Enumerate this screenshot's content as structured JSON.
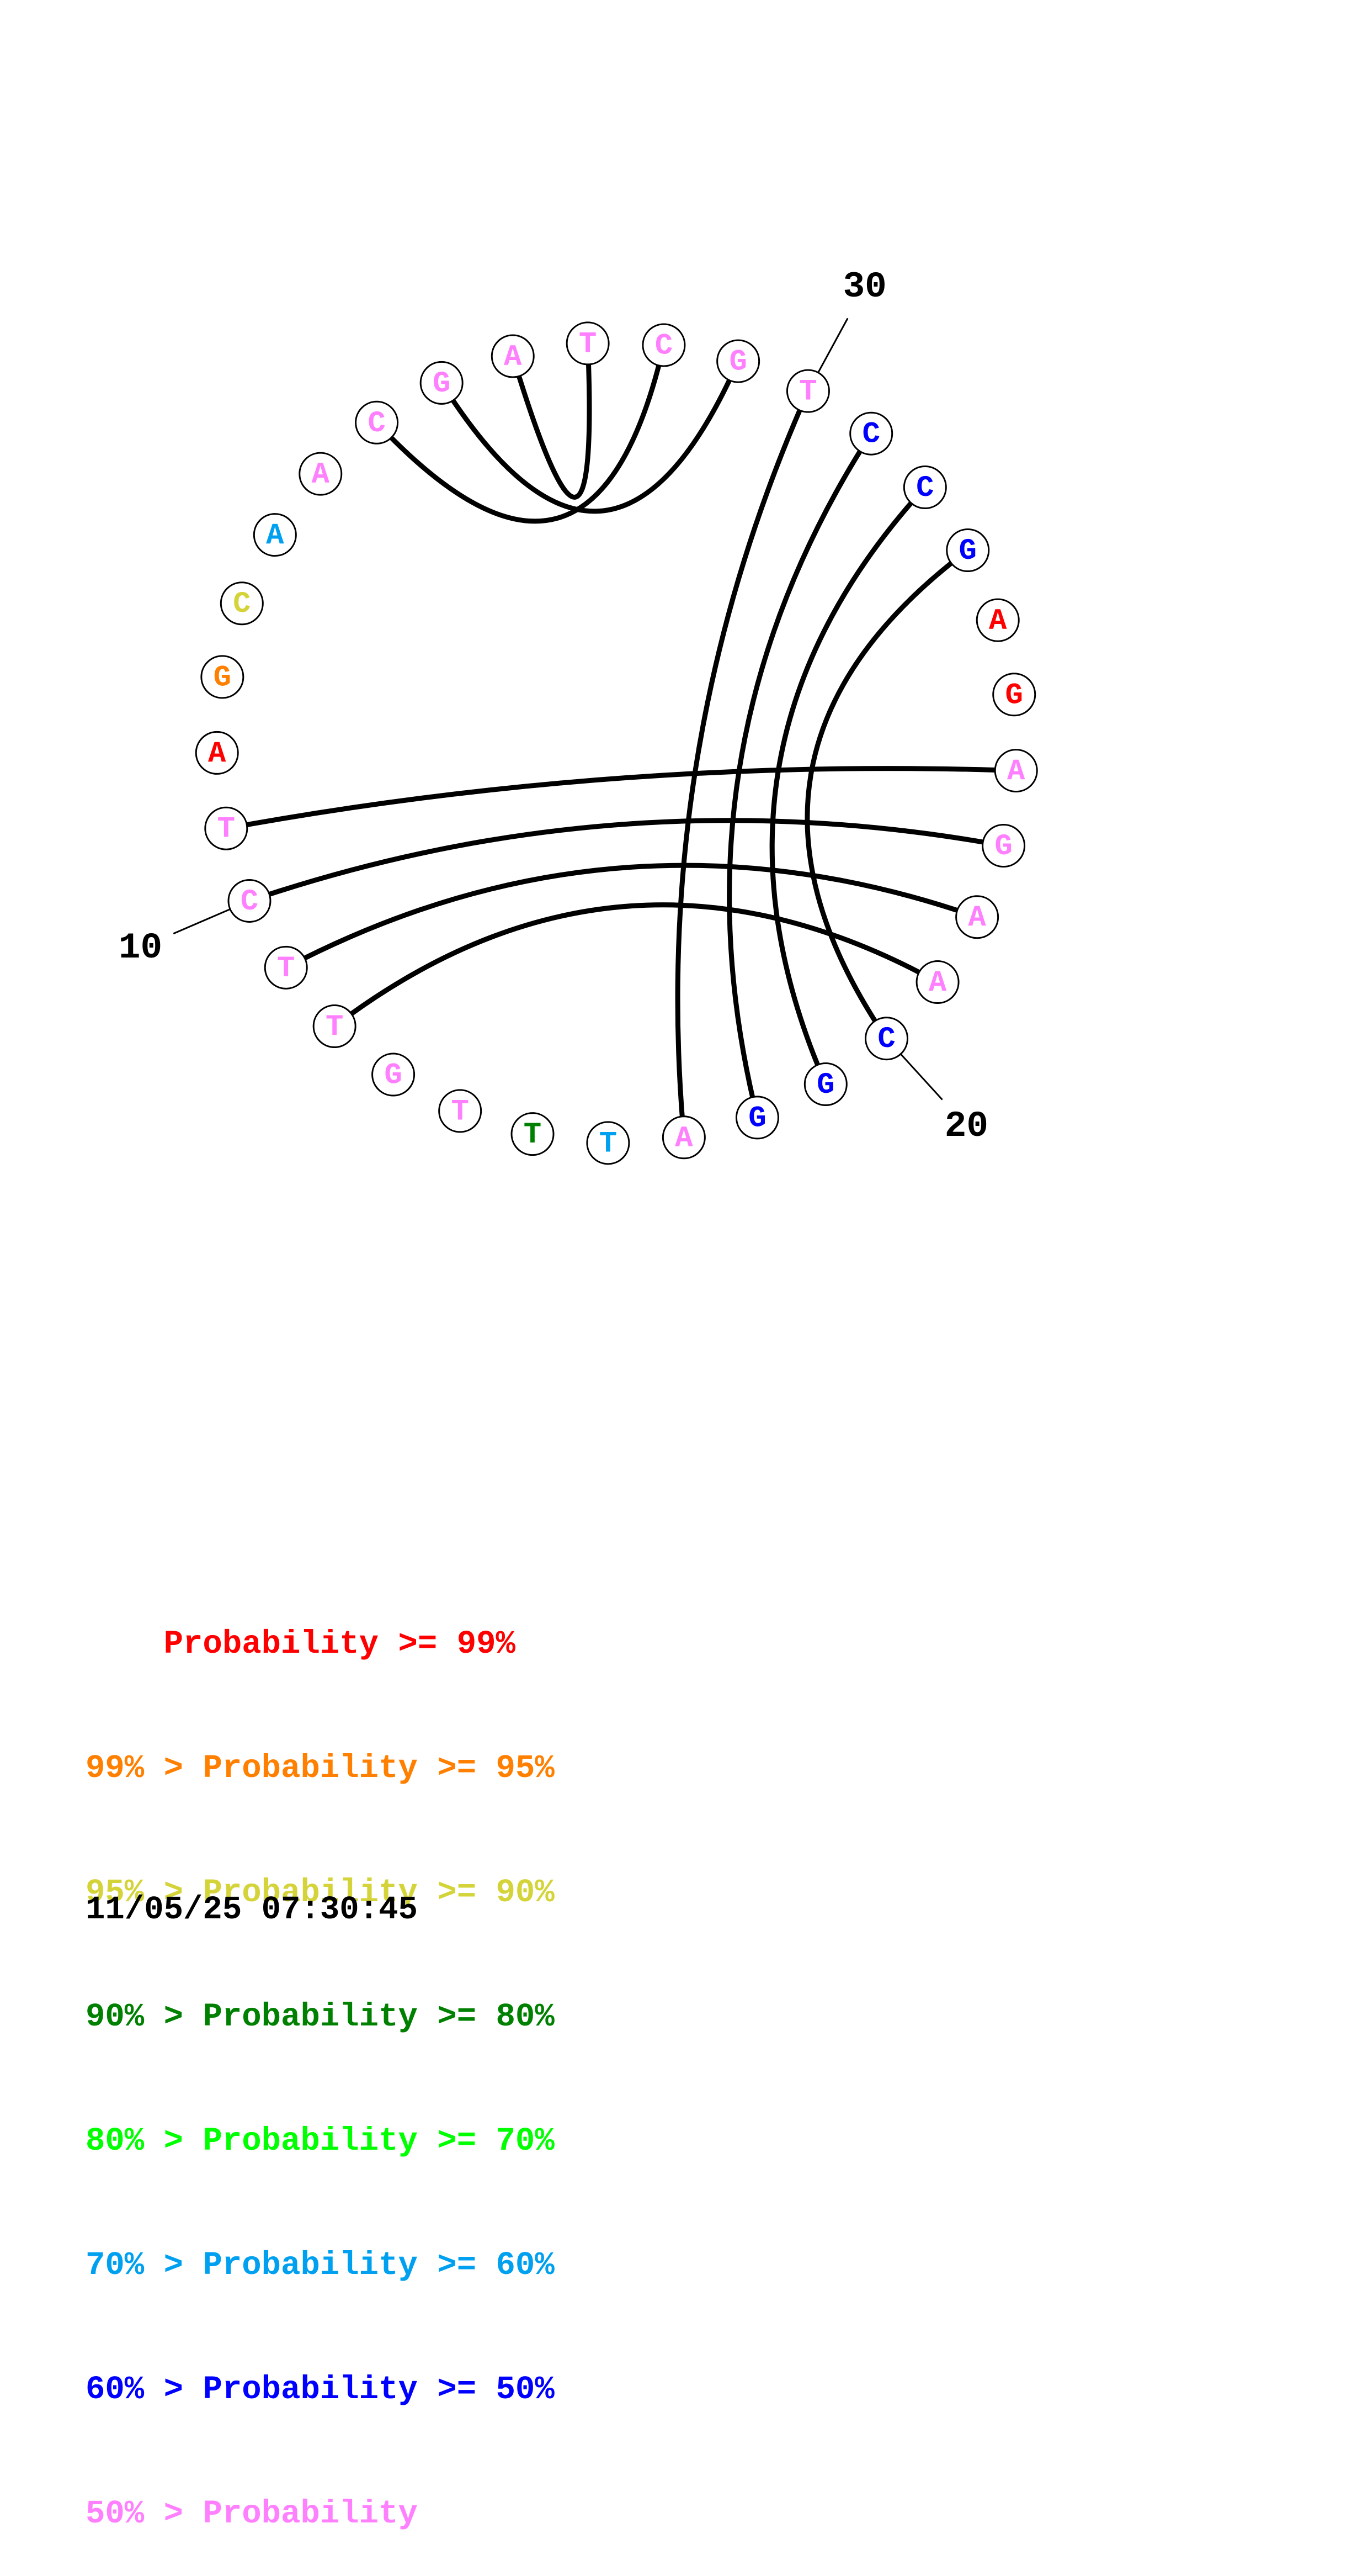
{
  "colors": {
    "p99": "#ff0000",
    "p95": "#ff8000",
    "p90": "#d4d43a",
    "p80": "#008000",
    "p70": "#00ff00",
    "p60": "#00a0f0",
    "p50": "#0000ff",
    "low": "#ff80ff"
  },
  "nucleotides": [
    {
      "index": 1,
      "base": "G",
      "color": "low"
    },
    {
      "index": 2,
      "base": "C",
      "color": "low"
    },
    {
      "index": 3,
      "base": "A",
      "color": "low"
    },
    {
      "index": 4,
      "base": "A",
      "color": "p60"
    },
    {
      "index": 5,
      "base": "C",
      "color": "p90"
    },
    {
      "index": 6,
      "base": "G",
      "color": "p95"
    },
    {
      "index": 7,
      "base": "A",
      "color": "p99"
    },
    {
      "index": 8,
      "base": "T",
      "color": "low"
    },
    {
      "index": 9,
      "base": "C",
      "color": "low"
    },
    {
      "index": 10,
      "base": "T",
      "color": "low"
    },
    {
      "index": 11,
      "base": "T",
      "color": "low"
    },
    {
      "index": 12,
      "base": "G",
      "color": "low"
    },
    {
      "index": 13,
      "base": "T",
      "color": "low"
    },
    {
      "index": 14,
      "base": "T",
      "color": "p80"
    },
    {
      "index": 15,
      "base": "T",
      "color": "p60"
    },
    {
      "index": 16,
      "base": "A",
      "color": "low"
    },
    {
      "index": 17,
      "base": "G",
      "color": "p50"
    },
    {
      "index": 18,
      "base": "G",
      "color": "p50"
    },
    {
      "index": 19,
      "base": "C",
      "color": "p50"
    },
    {
      "index": 20,
      "base": "A",
      "color": "low"
    },
    {
      "index": 21,
      "base": "A",
      "color": "low"
    },
    {
      "index": 22,
      "base": "G",
      "color": "low"
    },
    {
      "index": 23,
      "base": "A",
      "color": "low"
    },
    {
      "index": 24,
      "base": "G",
      "color": "p99"
    },
    {
      "index": 25,
      "base": "A",
      "color": "p99"
    },
    {
      "index": 26,
      "base": "G",
      "color": "p50"
    },
    {
      "index": 27,
      "base": "C",
      "color": "p50"
    },
    {
      "index": 28,
      "base": "C",
      "color": "p50"
    },
    {
      "index": 29,
      "base": "T",
      "color": "low"
    },
    {
      "index": 30,
      "base": "G",
      "color": "low"
    },
    {
      "index": 31,
      "base": "C",
      "color": "low"
    },
    {
      "index": 32,
      "base": "T",
      "color": "low"
    },
    {
      "index": 33,
      "base": "A",
      "color": "low"
    }
  ],
  "pairs": [
    [
      1,
      30
    ],
    [
      2,
      31
    ],
    [
      33,
      32
    ],
    [
      8,
      23
    ],
    [
      9,
      22
    ],
    [
      10,
      21
    ],
    [
      11,
      20
    ],
    [
      16,
      29
    ],
    [
      17,
      28
    ],
    [
      18,
      27
    ],
    [
      19,
      26
    ]
  ],
  "tick_labels": [
    {
      "nucleotide": 9,
      "label": "10"
    },
    {
      "nucleotide": 19,
      "label": "20"
    },
    {
      "nucleotide": 29,
      "label": "30"
    }
  ],
  "legend": [
    {
      "prefix": "    ",
      "text": "Probability >= 99%",
      "color": "p99"
    },
    {
      "prefix": "99% > ",
      "text": "Probability >= 95%",
      "color": "p95"
    },
    {
      "prefix": "95% > ",
      "text": "Probability >= 90%",
      "color": "p90"
    },
    {
      "prefix": "90% > ",
      "text": "Probability >= 80%",
      "color": "p80"
    },
    {
      "prefix": "80% > ",
      "text": "Probability >= 70%",
      "color": "p70"
    },
    {
      "prefix": "70% > ",
      "text": "Probability >= 60%",
      "color": "p60"
    },
    {
      "prefix": "60% > ",
      "text": "Probability >= 50%",
      "color": "p50"
    },
    {
      "prefix": "50% > ",
      "text": "Probability",
      "color": "low"
    }
  ],
  "timestamp": "11/05/25 07:30:45"
}
